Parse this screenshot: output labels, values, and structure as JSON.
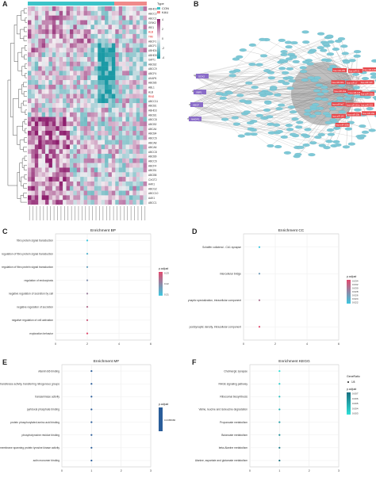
{
  "panels": {
    "a": {
      "letter": "A",
      "legend_title": "Type",
      "legend_items": [
        {
          "label": "CON",
          "color": "#3cc3c8"
        },
        {
          "label": "KAU",
          "color": "#f08a8a"
        }
      ],
      "scale_ticks": [
        "4",
        "2",
        "0",
        "-2",
        "-4"
      ],
      "scale_colors": {
        "high": "#8e1f6e",
        "mid": "#f4eef2",
        "low": "#1a9aa5"
      },
      "gene_labels": [
        "ABHD3",
        "ABCC2",
        "ABCC1",
        "GRIK2",
        "IRE1",
        "ALB",
        "TIM",
        "ABCF1",
        "ABCF1",
        "ABHD16",
        "ABHD5",
        "GMT1",
        "ABCB2",
        "ABCC9",
        "ABCF4",
        "AKAP6",
        "ABCB6",
        "ABL1",
        "ALB",
        "RIN2",
        "ABCC11",
        "ABCB1",
        "ABHD3",
        "ABCB1",
        "ABCC8",
        "ABCB2",
        "ABCA4",
        "ABCB4",
        "ABCC6",
        "ABCA8",
        "ABCA6",
        "ABCC8",
        "ABCB9",
        "ABCC6",
        "ABCF4",
        "ABCB1",
        "ABCB8",
        "CXGT2",
        "AAK1",
        "ABCG2",
        "ABCC10",
        "AAK1",
        "ABCC1"
      ],
      "red_labels": [
        5,
        6,
        19
      ]
    },
    "b": {
      "letter": "B",
      "tf_labels": [
        "SOX2",
        "XBP1",
        "ABCF",
        "NMDP1"
      ],
      "network_labels": [
        "hsa-miR-155",
        "hsa-miR-21",
        "hsa-miR-1246",
        "hsa-miR-92a",
        "hsa-miR-17",
        "hsa-miR-126",
        "hsa-miR-34a",
        "hsa-miR-145",
        "hsa-miR-200c",
        "hsa-miR-let7",
        "hsa-miR-181a",
        "hsa-miR-223",
        "hsa-miR-143",
        "hsa-miR-29b",
        "hsa-miR-19a",
        "hsa-miR-106b"
      ]
    },
    "c": {
      "letter": "C",
      "chart_data": {
        "type": "scatter",
        "title": "Enrichment BP",
        "categories": [
          "fibro protein signal transduction",
          "regulation of fibro protein signal transduction",
          "regulation of fibro protein signal transduction",
          "regulation of endocytosis",
          "negative regulation of secretion by cell",
          "negative regulation of secretion",
          "negative regulation of cell activation",
          "exploration behavior"
        ],
        "x": [
          2,
          2,
          2,
          2,
          2,
          2,
          2,
          2
        ],
        "xlim": [
          0,
          6
        ],
        "xticks": [
          "0",
          "2",
          "4",
          "6"
        ],
        "legend_title": "p.adjust",
        "legend_ticks": [
          "0.23",
          "0.22",
          "0.21"
        ],
        "colors": {
          "high": "#e24a6e",
          "low": "#3cc7e0"
        }
      }
    },
    "d": {
      "letter": "D",
      "chart_data": {
        "type": "scatter",
        "title": "Enrichment CC",
        "categories": [
          "Schaffer collateral - CA1 synapse",
          "intercellular bridge",
          "postsynaptic specialization, intracellular component",
          "postsynaptic density, intracellular component"
        ],
        "x": [
          1,
          1,
          1,
          1
        ],
        "xlim": [
          0,
          6
        ],
        "xticks": [
          "0",
          "2",
          "4",
          "6"
        ],
        "legend_title": "p.adjust",
        "legend_ticks": [
          "0.034",
          "0.032",
          "0.030",
          "0.028",
          "0.026",
          "0.024",
          "0.022"
        ],
        "colors": {
          "high": "#e24a6e",
          "low": "#3cc7e0"
        }
      }
    },
    "e": {
      "letter": "E",
      "chart_data": {
        "type": "scatter",
        "title": "Enrichment MF",
        "categories": [
          "vitamin B6 binding",
          "transferase activity, transferring nitrogenous groups",
          "transaminase activity",
          "pyridoxal phosphate binding",
          "protein phosphorylated amino acid binding",
          "phosphotyrosine residue binding",
          "non-membrane spanning protein tyrosine kinase activity",
          "actin monomer binding"
        ],
        "x": [
          1,
          1,
          1,
          1,
          1,
          1,
          1,
          1
        ],
        "xlim": [
          0,
          3
        ],
        "xticks": [
          "0",
          "1",
          "2",
          "3"
        ],
        "legend_title": "p.adjust",
        "legend_ticks": [
          "0.0385980"
        ],
        "colors": {
          "single": "#2a5d9a"
        }
      }
    },
    "f": {
      "letter": "F",
      "chart_data": {
        "type": "scatter",
        "title": "Enrichment KEGG",
        "categories": [
          "Cholinergic synapse",
          "RAGE signaling pathway",
          "Ribosomal biosynthesis",
          "Valine, leucine and isoleucine degradation",
          "Propanoate metabolism",
          "Butanoate metabolism",
          "beta-Alanine metabolism",
          "Alanine, aspartate and glutamate metabolism"
        ],
        "x": [
          1,
          1,
          1,
          1,
          1,
          1,
          1,
          1
        ],
        "xlim": [
          0,
          3
        ],
        "xticks": [
          "0",
          "1",
          "2",
          "3"
        ],
        "legend_title": "GeneRatio",
        "legend_size_label": "1/8",
        "legend_color_title": "p.adjust",
        "legend_ticks": [
          "0.007",
          "0.006",
          "0.005",
          "0.004",
          "0.003"
        ],
        "colors": {
          "high": "#1a6f80",
          "low": "#2ee0d8"
        }
      }
    }
  }
}
